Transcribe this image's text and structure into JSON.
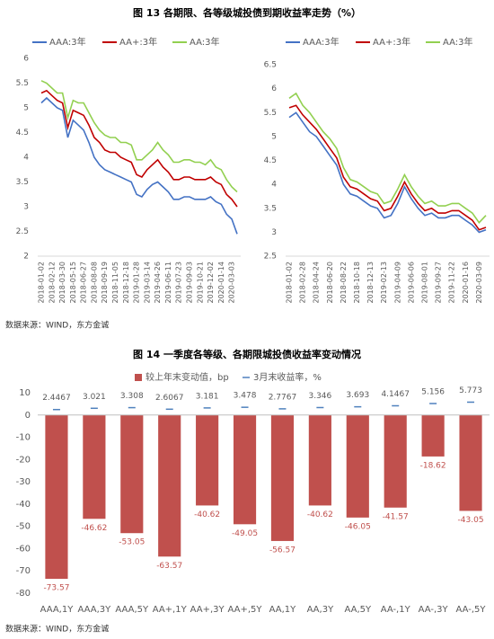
{
  "figures": [
    {
      "title": "图 13   各期限、各等级城投债到期收益率走势（%）",
      "source": "数据来源：WIND，东方金诚"
    },
    {
      "title": "图 14   一季度各等级、各期限城投债收益率变动情况",
      "source": "数据来源：WIND，东方金诚"
    }
  ],
  "chart_data": [
    {
      "type": "line",
      "categories": [
        "2018-01-02",
        null,
        "2018-02-12",
        null,
        "2018-03-30",
        null,
        "2018-05-15",
        null,
        "2018-06-27",
        null,
        "2018-08-08",
        null,
        "2018-09-19",
        null,
        "2018-11-05",
        null,
        "2018-12-18",
        null,
        "2019-01-28",
        null,
        "2019-03-14",
        null,
        "2019-04-26",
        null,
        "2019-06-11",
        null,
        "2019-07-23",
        null,
        "2019-09-03",
        null,
        "2019-10-21",
        null,
        "2019-12-02",
        null,
        "2020-01-14",
        null,
        "2020-03-03",
        null
      ],
      "series": [
        {
          "name": "AAA:3年",
          "color": "#4472c4",
          "values": [
            5.1,
            5.2,
            5.1,
            5.0,
            4.95,
            4.4,
            4.75,
            4.65,
            4.55,
            4.3,
            4.0,
            3.85,
            3.75,
            3.7,
            3.65,
            3.6,
            3.55,
            3.5,
            3.25,
            3.2,
            3.35,
            3.45,
            3.5,
            3.4,
            3.3,
            3.15,
            3.15,
            3.2,
            3.2,
            3.15,
            3.15,
            3.15,
            3.2,
            3.1,
            3.05,
            2.85,
            2.75,
            2.45
          ]
        },
        {
          "name": "AA+:3年",
          "color": "#c00000",
          "values": [
            5.3,
            5.35,
            5.25,
            5.15,
            5.1,
            4.6,
            4.95,
            4.9,
            4.85,
            4.65,
            4.4,
            4.3,
            4.15,
            4.1,
            4.1,
            4.0,
            3.95,
            3.9,
            3.65,
            3.6,
            3.75,
            3.85,
            3.95,
            3.8,
            3.7,
            3.55,
            3.55,
            3.6,
            3.6,
            3.55,
            3.55,
            3.55,
            3.6,
            3.5,
            3.45,
            3.25,
            3.15,
            3.0
          ]
        },
        {
          "name": "AA:3年",
          "color": "#92d050",
          "values": [
            5.55,
            5.5,
            5.4,
            5.3,
            5.3,
            4.8,
            5.15,
            5.1,
            5.1,
            4.9,
            4.7,
            4.55,
            4.45,
            4.4,
            4.4,
            4.3,
            4.3,
            4.25,
            3.95,
            3.95,
            4.05,
            4.15,
            4.3,
            4.15,
            4.05,
            3.9,
            3.9,
            3.95,
            3.95,
            3.9,
            3.9,
            3.85,
            3.95,
            3.8,
            3.75,
            3.55,
            3.4,
            3.3
          ]
        }
      ],
      "ylim": [
        2,
        6
      ],
      "yticks": [
        2,
        2.5,
        3,
        3.5,
        4,
        4.5,
        5,
        5.5,
        6
      ]
    },
    {
      "type": "line",
      "categories": [
        "2018-01-02",
        null,
        "2018-02-28",
        null,
        "2018-04-24",
        null,
        "2018-06-20",
        null,
        "2018-08-22",
        null,
        "2018-10-18",
        null,
        "2018-12-13",
        null,
        "2019-02-13",
        null,
        "2019-04-09",
        null,
        "2019-06-06",
        null,
        "2019-08-01",
        null,
        "2019-09-27",
        null,
        "2019-11-22",
        null,
        "2020-01-16",
        null,
        "2020-03-09",
        null
      ],
      "series": [
        {
          "name": "AAA:3年",
          "color": "#4472c4",
          "values": [
            5.4,
            5.5,
            5.3,
            5.1,
            5.0,
            4.8,
            4.6,
            4.4,
            4.0,
            3.8,
            3.75,
            3.65,
            3.55,
            3.5,
            3.3,
            3.35,
            3.6,
            3.95,
            3.7,
            3.5,
            3.35,
            3.4,
            3.3,
            3.3,
            3.35,
            3.35,
            3.25,
            3.15,
            3.0,
            3.05
          ]
        },
        {
          "name": "AA+:3年",
          "color": "#c00000",
          "values": [
            5.6,
            5.65,
            5.45,
            5.3,
            5.15,
            4.95,
            4.75,
            4.55,
            4.15,
            3.95,
            3.9,
            3.8,
            3.7,
            3.65,
            3.45,
            3.5,
            3.75,
            4.05,
            3.8,
            3.6,
            3.45,
            3.5,
            3.4,
            3.4,
            3.45,
            3.45,
            3.35,
            3.25,
            3.05,
            3.1
          ]
        },
        {
          "name": "AA:3年",
          "color": "#92d050",
          "values": [
            5.8,
            5.9,
            5.65,
            5.5,
            5.3,
            5.1,
            4.95,
            4.75,
            4.35,
            4.1,
            4.05,
            3.95,
            3.85,
            3.8,
            3.6,
            3.65,
            3.9,
            4.2,
            3.95,
            3.75,
            3.6,
            3.65,
            3.55,
            3.55,
            3.6,
            3.6,
            3.5,
            3.4,
            3.2,
            3.35
          ]
        }
      ],
      "ylim": [
        2.5,
        6.5
      ],
      "yticks": [
        "2.5",
        3,
        3.5,
        4,
        4.5,
        5,
        5.5,
        6,
        6.5
      ]
    },
    {
      "type": "bar",
      "categories": [
        "AAA,1Y",
        "AAA,3Y",
        "AAA,5Y",
        "AA+,1Y",
        "AA+,3Y",
        "AA+,5Y",
        "AA,1Y",
        "AA,3Y",
        "AA,5Y",
        "AA-,1Y",
        "AA-,3Y",
        "AA-,5Y"
      ],
      "series": [
        {
          "name": "较上年末变动值，bp",
          "color": "#c0504d",
          "values": [
            -73.57,
            -46.62,
            -53.05,
            -63.57,
            -40.62,
            -49.05,
            -56.57,
            -40.62,
            -46.05,
            -41.57,
            -18.62,
            -43.05
          ]
        },
        {
          "name": "3月末收益率，%",
          "color": "#4f81bd",
          "marker": "dash",
          "values": [
            2.4467,
            3.021,
            3.308,
            2.6067,
            3.181,
            3.478,
            2.7767,
            3.346,
            3.693,
            4.1467,
            5.156,
            5.773
          ]
        }
      ],
      "ylim": [
        -80,
        10
      ],
      "yticks": [
        10,
        0,
        -10,
        -20,
        -30,
        -40,
        -50,
        -60,
        -70,
        -80
      ]
    }
  ]
}
